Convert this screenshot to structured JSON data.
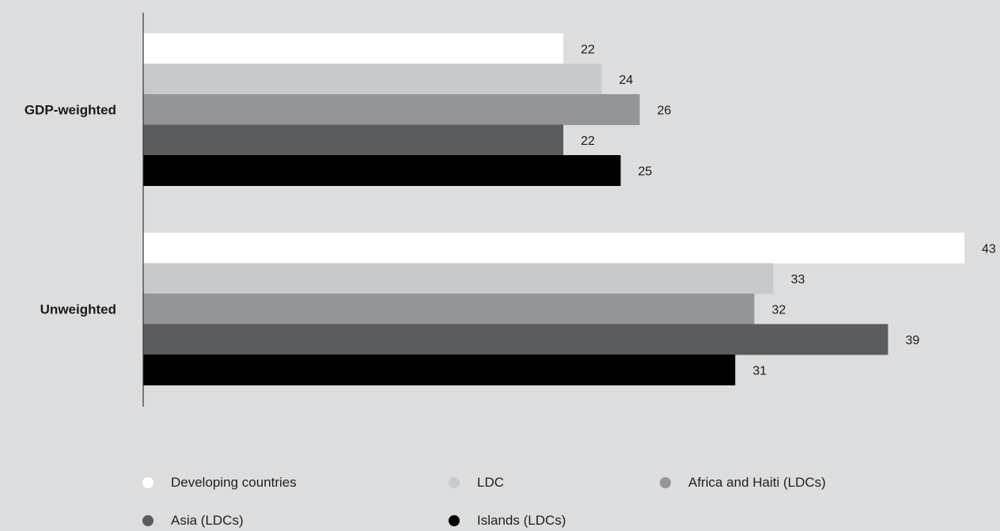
{
  "chart_data": {
    "type": "bar",
    "orientation": "horizontal",
    "title": "",
    "xlabel": "",
    "ylabel": "",
    "categories": [
      "GDP-weighted",
      "Unweighted"
    ],
    "series": [
      {
        "name": "Developing countries",
        "color": "#ffffff",
        "values": [
          22,
          43
        ]
      },
      {
        "name": "LDC",
        "color": "#c8c9cb",
        "values": [
          24,
          33
        ]
      },
      {
        "name": "Africa and Haiti (LDCs)",
        "color": "#949598",
        "values": [
          26,
          32
        ]
      },
      {
        "name": "Asia (LDCs)",
        "color": "#5b5c5e",
        "values": [
          22,
          39
        ]
      },
      {
        "name": "Islands (LDCs)",
        "color": "#000000",
        "values": [
          25,
          31
        ]
      }
    ],
    "xlim": [
      0,
      43
    ],
    "grid": false,
    "legend_position": "bottom",
    "data_labels": true
  },
  "colors": {
    "background": "#dcdddf",
    "axis": "#333333",
    "text": "#1f1f1f"
  }
}
